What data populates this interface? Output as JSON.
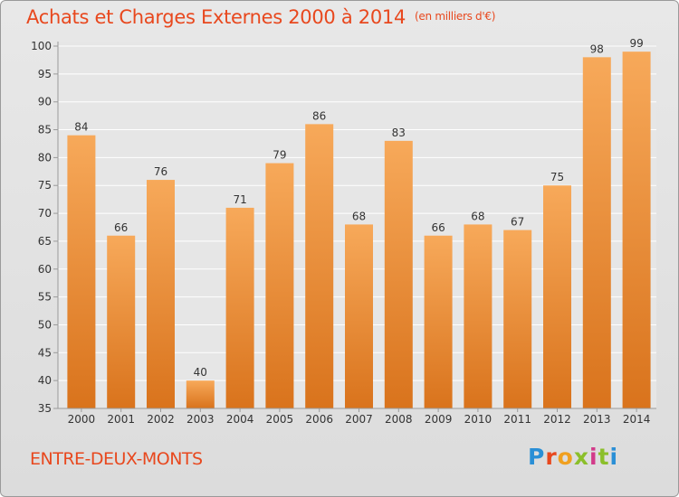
{
  "header": {
    "title": "Achats et Charges Externes 2000 à 2014",
    "unit": "(en milliers d'€)"
  },
  "footer": {
    "place_name": "ENTRE-DEUX-MONTS",
    "logo_text": "Proxiti"
  },
  "colors": {
    "title": "#e8481e",
    "bar_top": "#f7a95a",
    "bar_bottom": "#d9731c",
    "grid": "#ffffff"
  },
  "chart_data": {
    "type": "bar",
    "title": "Achats et Charges Externes 2000 à 2014",
    "subtitle": "(en milliers d'€)",
    "xlabel": "",
    "ylabel": "",
    "categories": [
      "2000",
      "2001",
      "2002",
      "2003",
      "2004",
      "2005",
      "2006",
      "2007",
      "2008",
      "2009",
      "2010",
      "2011",
      "2012",
      "2013",
      "2014"
    ],
    "values": [
      84,
      66,
      76,
      40,
      71,
      79,
      86,
      68,
      83,
      66,
      68,
      67,
      75,
      98,
      99
    ],
    "ylim": [
      35,
      100
    ],
    "yticks": [
      35,
      40,
      45,
      50,
      55,
      60,
      65,
      70,
      75,
      80,
      85,
      90,
      95,
      100
    ],
    "grid": true,
    "legend": "none"
  }
}
